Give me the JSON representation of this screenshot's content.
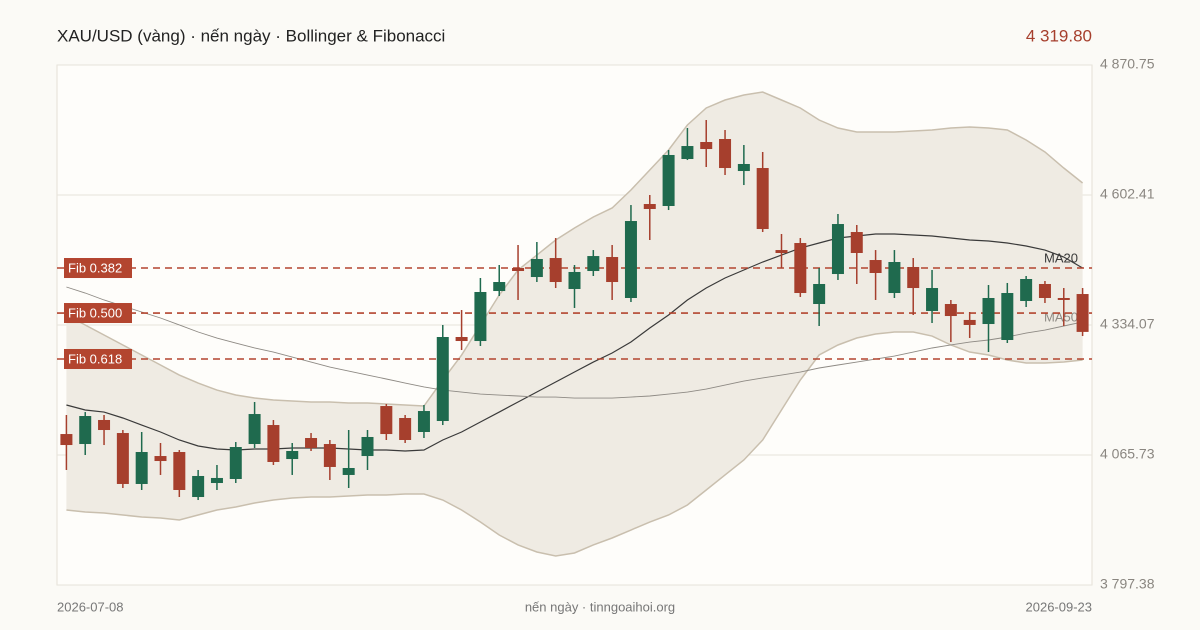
{
  "chart_data": {
    "type": "candlestick",
    "title": "XAU/USD (vàng) · nến ngày · Bollinger & Fibonacci",
    "last_price": {
      "value": 4319.8,
      "label": "4 319.80"
    },
    "source": "nến ngày · tinngoaihoi.org",
    "x": [
      "2026-07-08",
      null,
      null,
      null,
      null,
      null,
      null,
      null,
      null,
      null,
      null,
      null,
      null,
      null,
      null,
      null,
      null,
      null,
      null,
      null,
      null,
      null,
      null,
      null,
      null,
      null,
      null,
      null,
      null,
      null,
      null,
      null,
      null,
      null,
      null,
      null,
      null,
      null,
      null,
      null,
      null,
      null,
      null,
      null,
      null,
      null,
      null,
      null,
      null,
      null,
      null,
      null,
      null,
      null,
      "2026-09-23"
    ],
    "open": [
      4109.0,
      4088.4,
      4138.0,
      4111.1,
      4005.9,
      4063.6,
      4071.9,
      3979.0,
      4007.9,
      4016.2,
      4088.4,
      4127.6,
      4057.4,
      4100.8,
      4088.4,
      4024.5,
      4063.6,
      4166.8,
      4142.1,
      4113.2,
      4135.9,
      4309.3,
      4301.0,
      4404.2,
      4451.7,
      4433.1,
      4472.3,
      4408.4,
      4445.5,
      4474.4,
      4389.8,
      4583.8,
      4579.7,
      4676.7,
      4711.8,
      4718.0,
      4651.9,
      4658.1,
      4488.8,
      4503.3,
      4377.4,
      4439.3,
      4526.0,
      4468.2,
      4400.1,
      4453.8,
      4363.0,
      4377.4,
      4344.5,
      4336.1,
      4303.1,
      4383.6,
      4418.7,
      4389.8,
      4398.0
    ],
    "high": [
      4148.3,
      4154.4,
      4148.3,
      4117.3,
      4113.2,
      4090.5,
      4076.0,
      4034.8,
      4045.1,
      4092.5,
      4175.1,
      4138.0,
      4090.5,
      4111.1,
      4096.7,
      4117.3,
      4117.3,
      4171.0,
      4148.3,
      4168.9,
      4334.1,
      4365.0,
      4431.1,
      4457.9,
      4499.2,
      4505.4,
      4513.6,
      4457.9,
      4488.8,
      4499.2,
      4581.7,
      4602.4,
      4695.3,
      4740.7,
      4757.2,
      4736.6,
      4705.6,
      4691.2,
      4521.9,
      4513.6,
      4451.7,
      4563.2,
      4540.5,
      4488.8,
      4488.8,
      4472.3,
      4447.6,
      4385.7,
      4360.9,
      4416.6,
      4420.8,
      4435.2,
      4424.9,
      4410.4,
      4410.4
    ],
    "low": [
      4034.8,
      4065.7,
      4086.3,
      3997.6,
      3993.5,
      4024.5,
      3979.0,
      3972.8,
      3993.5,
      4007.9,
      4080.2,
      4045.1,
      4024.5,
      4074.0,
      4014.1,
      3997.6,
      4034.8,
      4096.7,
      4090.5,
      4100.8,
      4127.6,
      4282.4,
      4290.7,
      4393.9,
      4385.7,
      4422.8,
      4410.4,
      4369.2,
      4435.2,
      4385.7,
      4381.5,
      4509.5,
      4571.4,
      4674.6,
      4660.2,
      4643.7,
      4623.0,
      4526.0,
      4451.7,
      4391.9,
      4332.0,
      4427.0,
      4418.7,
      4385.7,
      4389.8,
      4354.7,
      4338.2,
      4298.9,
      4307.2,
      4278.3,
      4296.9,
      4371.2,
      4379.5,
      4332.0,
      4311.3
    ],
    "close": [
      4086.3,
      4146.2,
      4117.3,
      4005.9,
      4071.9,
      4053.3,
      3993.5,
      4022.4,
      4018.3,
      4082.2,
      4150.3,
      4051.3,
      4074.0,
      4080.2,
      4041.0,
      4038.9,
      4102.9,
      4109.0,
      4096.7,
      4156.5,
      4309.3,
      4301.0,
      4402.2,
      4422.8,
      4445.5,
      4470.3,
      4422.8,
      4443.5,
      4476.4,
      4422.8,
      4548.7,
      4573.5,
      4685.0,
      4703.5,
      4697.3,
      4658.1,
      4666.4,
      4532.2,
      4482.7,
      4400.1,
      4418.7,
      4542.5,
      4482.7,
      4441.4,
      4464.1,
      4410.4,
      4410.4,
      4352.6,
      4334.1,
      4389.8,
      4400.1,
      4429.0,
      4389.8,
      4385.7,
      4319.8
    ],
    "up_color": "#1f6a4e",
    "down_color": "#a63f2d",
    "bollinger": {
      "color": "#efebe3",
      "edge_color": "#c9bfae",
      "upper": [
        4354.7,
        4334.1,
        4313.4,
        4292.8,
        4272.1,
        4251.5,
        4230.8,
        4214.3,
        4199.8,
        4189.5,
        4183.3,
        4179.2,
        4177.2,
        4175.1,
        4175.1,
        4173.0,
        4173.0,
        4171.0,
        4168.9,
        4166.8,
        4220.5,
        4272.1,
        4334.1,
        4396.0,
        4447.6,
        4478.5,
        4509.5,
        4534.3,
        4557.0,
        4575.6,
        4612.7,
        4654.0,
        4695.3,
        4746.9,
        4782.0,
        4798.5,
        4808.8,
        4815.0,
        4798.5,
        4782.0,
        4757.2,
        4740.7,
        4732.4,
        4732.4,
        4732.4,
        4734.5,
        4736.6,
        4740.7,
        4742.8,
        4740.7,
        4736.6,
        4716.0,
        4691.2,
        4658.1,
        4627.2
      ],
      "lower": [
        3952.2,
        3948.1,
        3946.0,
        3941.9,
        3937.7,
        3935.7,
        3931.5,
        3941.9,
        3952.2,
        3958.4,
        3966.6,
        3972.8,
        3976.9,
        3979.0,
        3979.0,
        3981.1,
        3983.1,
        3983.1,
        3985.2,
        3985.2,
        3972.8,
        3952.2,
        3927.4,
        3900.6,
        3880.0,
        3865.5,
        3857.3,
        3863.5,
        3880.0,
        3894.4,
        3910.9,
        3927.4,
        3941.9,
        3962.5,
        3993.5,
        4024.5,
        4055.4,
        4096.7,
        4158.6,
        4220.5,
        4272.1,
        4292.8,
        4307.2,
        4315.4,
        4319.6,
        4319.6,
        4311.3,
        4292.8,
        4278.3,
        4272.1,
        4261.8,
        4255.6,
        4255.6,
        4257.6,
        4261.8
      ]
    },
    "series": [
      {
        "name": "MA20",
        "color": "#3a3a3a",
        "values": [
          4168.9,
          4158.6,
          4154.4,
          4142.1,
          4127.6,
          4113.2,
          4096.7,
          4084.3,
          4078.1,
          4076.0,
          4078.1,
          4078.1,
          4080.2,
          4080.2,
          4080.2,
          4078.1,
          4076.0,
          4076.0,
          4074.0,
          4076.0,
          4096.7,
          4113.2,
          4133.8,
          4154.4,
          4175.1,
          4195.7,
          4216.4,
          4237.0,
          4257.6,
          4276.3,
          4298.9,
          4327.8,
          4354.7,
          4385.7,
          4410.4,
          4431.1,
          4447.6,
          4464.1,
          4478.5,
          4492.9,
          4503.3,
          4513.6,
          4517.8,
          4521.9,
          4521.9,
          4519.8,
          4517.8,
          4513.6,
          4509.5,
          4507.4,
          4503.3,
          4497.1,
          4488.8,
          4474.4,
          4451.7
        ]
      },
      {
        "name": "MA50",
        "color": "#8e8a84",
        "values": [
          4412.5,
          4400.1,
          4385.7,
          4373.3,
          4360.9,
          4348.5,
          4334.1,
          4319.6,
          4307.2,
          4296.9,
          4286.6,
          4278.3,
          4268.0,
          4257.6,
          4247.3,
          4239.1,
          4230.8,
          4222.6,
          4214.3,
          4206.1,
          4199.8,
          4195.7,
          4191.6,
          4189.5,
          4187.5,
          4185.4,
          4185.4,
          4183.3,
          4183.3,
          4183.3,
          4185.4,
          4187.5,
          4191.6,
          4195.7,
          4201.9,
          4210.2,
          4218.4,
          4224.7,
          4230.8,
          4237.0,
          4245.3,
          4251.5,
          4257.6,
          4263.8,
          4270.0,
          4278.3,
          4286.6,
          4292.8,
          4298.9,
          4303.1,
          4309.3,
          4317.5,
          4323.7,
          4332.0,
          4340.3
        ]
      }
    ],
    "fib_levels": [
      {
        "label": "Fib 0.382",
        "value": 4451.7
      },
      {
        "label": "Fib 0.500",
        "value": 4358.8
      },
      {
        "label": "Fib 0.618",
        "value": 4263.9
      }
    ],
    "fib_color": "#b3452f",
    "ylim": [
      3797.38,
      4870.75
    ],
    "yticks": [
      {
        "value": 3797.38,
        "label": "3 797.38"
      },
      {
        "value": 4065.73,
        "label": "4 065.73"
      },
      {
        "value": 4334.07,
        "label": "4 334.07"
      },
      {
        "value": 4602.41,
        "label": "4 602.41"
      },
      {
        "value": 4870.75,
        "label": "4 870.75"
      }
    ],
    "grid": true
  }
}
